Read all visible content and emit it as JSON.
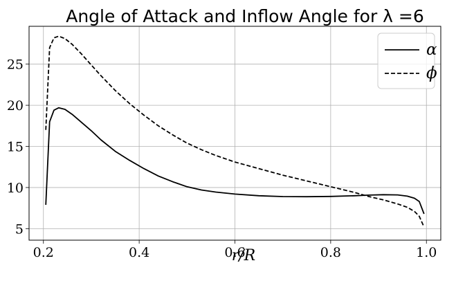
{
  "chart_data": {
    "type": "line",
    "title": "Angle of Attack and Inflow Angle for λ =6",
    "xlabel": "r/R",
    "ylabel": "",
    "xlim": [
      0.17,
      1.03
    ],
    "ylim": [
      3.6,
      29.6
    ],
    "xticks": [
      0.2,
      0.4,
      0.6,
      0.8,
      1.0
    ],
    "xtick_labels": [
      "0.2",
      "0.4",
      "0.6",
      "0.8",
      "1.0"
    ],
    "yticks": [
      5,
      10,
      15,
      20,
      25
    ],
    "ytick_labels": [
      "5",
      "10",
      "15",
      "20",
      "25"
    ],
    "grid": true,
    "legend_position": "top-right",
    "series": [
      {
        "name": "α",
        "style": "solid",
        "color": "#000000",
        "points": [
          [
            0.205,
            7.9
          ],
          [
            0.213,
            18.0
          ],
          [
            0.222,
            19.4
          ],
          [
            0.232,
            19.7
          ],
          [
            0.245,
            19.5
          ],
          [
            0.26,
            18.9
          ],
          [
            0.28,
            17.9
          ],
          [
            0.3,
            16.9
          ],
          [
            0.32,
            15.8
          ],
          [
            0.35,
            14.4
          ],
          [
            0.38,
            13.3
          ],
          [
            0.41,
            12.3
          ],
          [
            0.44,
            11.4
          ],
          [
            0.47,
            10.7
          ],
          [
            0.5,
            10.1
          ],
          [
            0.53,
            9.7
          ],
          [
            0.56,
            9.45
          ],
          [
            0.6,
            9.2
          ],
          [
            0.65,
            9.0
          ],
          [
            0.7,
            8.9
          ],
          [
            0.75,
            8.88
          ],
          [
            0.8,
            8.92
          ],
          [
            0.85,
            9.0
          ],
          [
            0.88,
            9.08
          ],
          [
            0.91,
            9.13
          ],
          [
            0.94,
            9.1
          ],
          [
            0.96,
            8.95
          ],
          [
            0.975,
            8.7
          ],
          [
            0.985,
            8.3
          ],
          [
            0.995,
            6.8
          ]
        ]
      },
      {
        "name": "ϕ",
        "style": "dashed",
        "color": "#000000",
        "points": [
          [
            0.205,
            17.0
          ],
          [
            0.213,
            27.0
          ],
          [
            0.222,
            28.2
          ],
          [
            0.232,
            28.4
          ],
          [
            0.245,
            28.1
          ],
          [
            0.26,
            27.4
          ],
          [
            0.28,
            26.2
          ],
          [
            0.3,
            24.9
          ],
          [
            0.32,
            23.6
          ],
          [
            0.35,
            21.8
          ],
          [
            0.38,
            20.2
          ],
          [
            0.41,
            18.8
          ],
          [
            0.44,
            17.5
          ],
          [
            0.47,
            16.4
          ],
          [
            0.5,
            15.4
          ],
          [
            0.53,
            14.6
          ],
          [
            0.56,
            13.9
          ],
          [
            0.6,
            13.1
          ],
          [
            0.65,
            12.3
          ],
          [
            0.7,
            11.5
          ],
          [
            0.75,
            10.8
          ],
          [
            0.8,
            10.1
          ],
          [
            0.85,
            9.4
          ],
          [
            0.88,
            8.9
          ],
          [
            0.91,
            8.5
          ],
          [
            0.94,
            8.0
          ],
          [
            0.96,
            7.6
          ],
          [
            0.975,
            7.1
          ],
          [
            0.985,
            6.5
          ],
          [
            0.995,
            5.2
          ]
        ]
      }
    ]
  }
}
